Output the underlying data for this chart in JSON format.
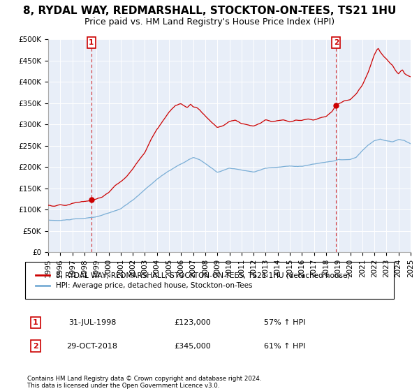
{
  "title": "8, RYDAL WAY, REDMARSHALL, STOCKTON-ON-TEES, TS21 1HU",
  "subtitle": "Price paid vs. HM Land Registry's House Price Index (HPI)",
  "ylim": [
    0,
    500000
  ],
  "yticks": [
    0,
    50000,
    100000,
    150000,
    200000,
    250000,
    300000,
    350000,
    400000,
    450000,
    500000
  ],
  "ytick_labels": [
    "£0",
    "£50K",
    "£100K",
    "£150K",
    "£200K",
    "£250K",
    "£300K",
    "£350K",
    "£400K",
    "£450K",
    "£500K"
  ],
  "xmin_year": 1995,
  "xmax_year": 2025,
  "xticks": [
    1995,
    1996,
    1997,
    1998,
    1999,
    2000,
    2001,
    2002,
    2003,
    2004,
    2005,
    2006,
    2007,
    2008,
    2009,
    2010,
    2011,
    2012,
    2013,
    2014,
    2015,
    2016,
    2017,
    2018,
    2019,
    2020,
    2021,
    2022,
    2023,
    2024,
    2025
  ],
  "purchase1_x": 1998.58,
  "purchase1_y": 123000,
  "purchase2_x": 2018.83,
  "purchase2_y": 345000,
  "red_line_color": "#cc0000",
  "blue_line_color": "#7aaed6",
  "dashed_line_color": "#cc0000",
  "legend_label1": "8, RYDAL WAY, REDMARSHALL, STOCKTON-ON-TEES, TS21 1HU (detached house)",
  "legend_label2": "HPI: Average price, detached house, Stockton-on-Tees",
  "annotation1_box": "1",
  "annotation2_box": "2",
  "ann1_date": "31-JUL-1998",
  "ann1_price": "£123,000",
  "ann1_hpi": "57% ↑ HPI",
  "ann2_date": "29-OCT-2018",
  "ann2_price": "£345,000",
  "ann2_hpi": "61% ↑ HPI",
  "footer": "Contains HM Land Registry data © Crown copyright and database right 2024.\nThis data is licensed under the Open Government Licence v3.0.",
  "bg_color": "#ffffff",
  "plot_bg_color": "#e8eef8",
  "grid_color": "#ffffff",
  "title_fontsize": 11,
  "subtitle_fontsize": 9,
  "tick_fontsize": 7.5
}
